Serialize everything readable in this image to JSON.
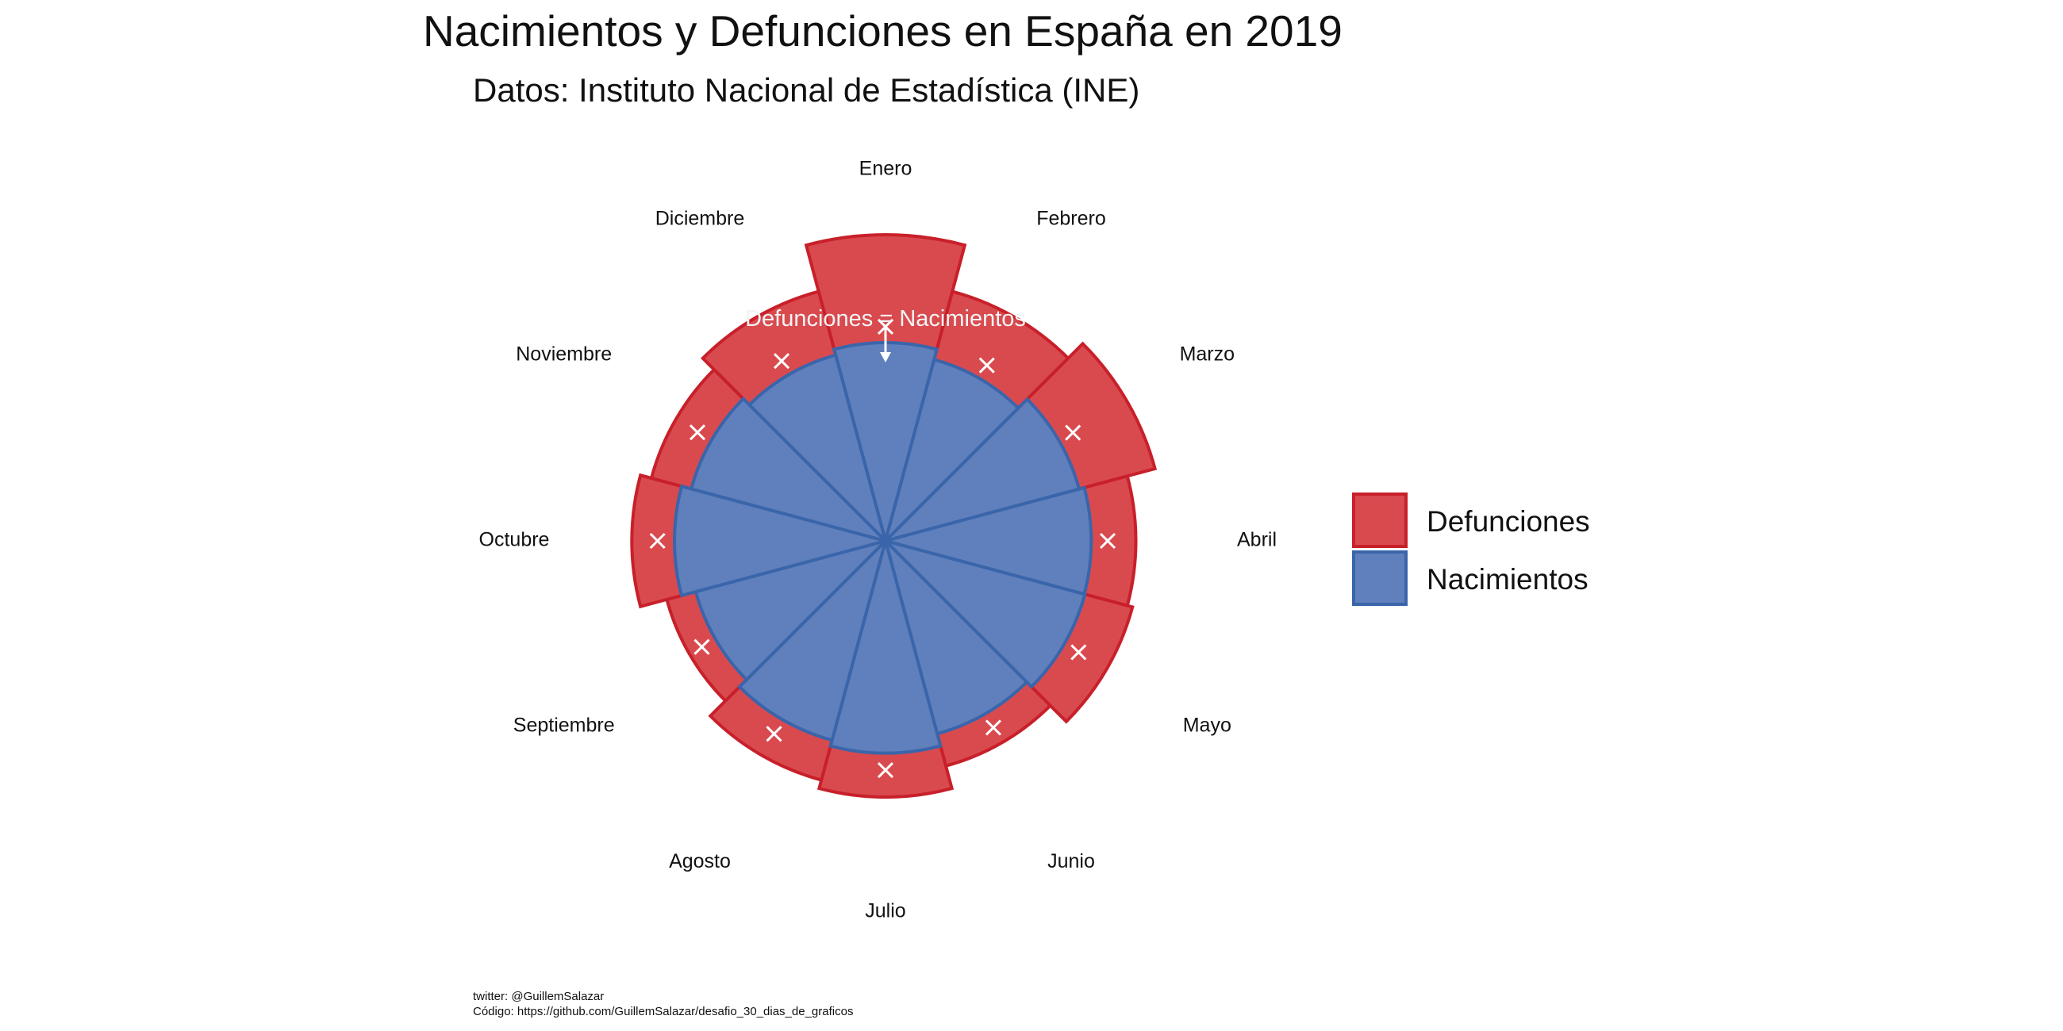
{
  "title": "Nacimientos y Defunciones en España en 2019",
  "subtitle": "Datos: Instituto Nacional de Estadística (INE)",
  "caption": {
    "line1": "twitter: @GuillemSalazar",
    "line2": "Código: https://github.com/GuillemSalazar/desafio_30_dias_de_graficos"
  },
  "annotation": {
    "text": "Defunciones = Nacimientos"
  },
  "colors": {
    "defunciones_fill": "#D94A4F",
    "defunciones_stroke": "#C8202A",
    "nacimientos_fill": "#5F80BC",
    "nacimientos_stroke": "#3A65AA",
    "marker": "#ffffff"
  },
  "legend": {
    "items": [
      {
        "label": "Defunciones"
      },
      {
        "label": "Nacimientos"
      }
    ]
  },
  "chart_data": {
    "type": "polar-bar",
    "title": "Nacimientos y Defunciones en España en 2019",
    "subtitle": "Datos: Instituto Nacional de Estadística (INE)",
    "categories": [
      "Enero",
      "Febrero",
      "Marzo",
      "Abril",
      "Mayo",
      "Junio",
      "Julio",
      "Agosto",
      "Septiembre",
      "Octubre",
      "Noviembre",
      "Diciembre"
    ],
    "series": [
      {
        "name": "Defunciones",
        "values": [
          46000,
          38800,
          41900,
          37600,
          38400,
          35000,
          38500,
          37200,
          34000,
          38100,
          36400,
          38800
        ]
      },
      {
        "name": "Nacimientos",
        "values": [
          29800,
          28200,
          30100,
          30900,
          31000,
          30000,
          31900,
          31000,
          29500,
          31700,
          30200,
          28900
        ]
      }
    ],
    "reference_markers": "Defunciones = Nacimientos",
    "legend_position": "right",
    "grid": false
  }
}
